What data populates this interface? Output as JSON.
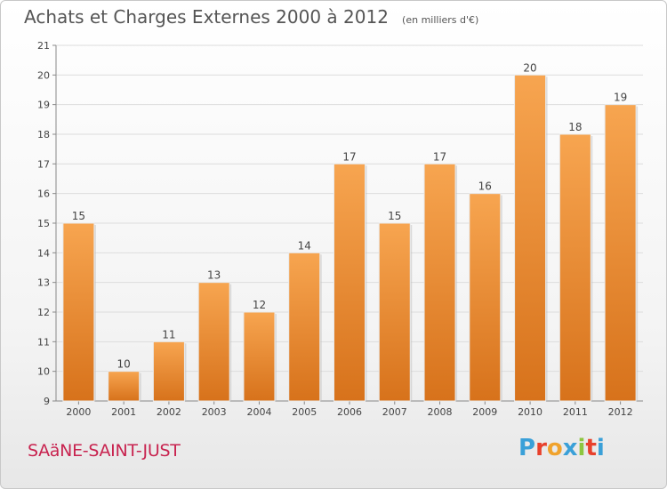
{
  "header": {
    "title": "Achats et Charges Externes 2000 à 2012",
    "unit": "(en milliers d'€)"
  },
  "footer": {
    "commune": "SAäNE-SAINT-JUST",
    "logo_text": "Proxiti",
    "logo_colors": [
      "#3aa0d8",
      "#e8412c",
      "#f0a32d",
      "#3aa0d8",
      "#8dc63f",
      "#e8412c",
      "#3aa0d8"
    ]
  },
  "chart_data": {
    "type": "bar",
    "categories": [
      "2000",
      "2001",
      "2002",
      "2003",
      "2004",
      "2005",
      "2006",
      "2007",
      "2008",
      "2009",
      "2010",
      "2011",
      "2012"
    ],
    "values": [
      15,
      10,
      11,
      13,
      12,
      14,
      17,
      15,
      17,
      16,
      20,
      18,
      19
    ],
    "ylim": [
      9,
      21
    ],
    "yticks": [
      9,
      10,
      11,
      12,
      13,
      14,
      15,
      16,
      17,
      18,
      19,
      20,
      21
    ],
    "grid": true,
    "bar_color_top": "#f7a550",
    "bar_color_bottom": "#d7721b"
  }
}
